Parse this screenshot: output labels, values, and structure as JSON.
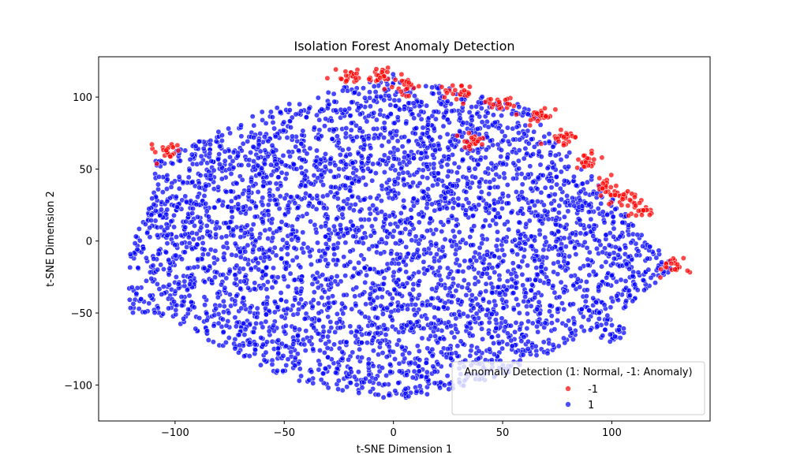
{
  "chart_data": {
    "type": "scatter",
    "title": "Isolation Forest Anomaly Detection",
    "xlabel": "t-SNE Dimension 1",
    "ylabel": "t-SNE Dimension 2",
    "xlim": [
      -135,
      145
    ],
    "ylim": [
      -125,
      128
    ],
    "xticks": [
      -100,
      -50,
      0,
      50,
      100
    ],
    "yticks": [
      -100,
      -50,
      0,
      50,
      100
    ],
    "grid": false,
    "legend": {
      "title": "Anomaly Detection (1: Normal, -1: Anomaly)",
      "placement": "lower-right",
      "entries": [
        {
          "label": "-1",
          "color": "#ff0000"
        },
        {
          "label": "1",
          "color": "#0000ff"
        }
      ]
    },
    "colors": {
      "anomaly": "#ff0000",
      "normal": "#0000ff",
      "edge": "#ffffff"
    },
    "series": [
      {
        "label": "1",
        "description": "normal points filling the main cluster",
        "x_range": [
          -121,
          130
        ],
        "y_range": [
          -113,
          116
        ]
      },
      {
        "label": "-1",
        "description": "anomaly points along the upper and right edges",
        "clusters": [
          {
            "x": -103,
            "y": 62
          },
          {
            "x": -19,
            "y": 114
          },
          {
            "x": -7,
            "y": 115
          },
          {
            "x": 6,
            "y": 108
          },
          {
            "x": 30,
            "y": 103
          },
          {
            "x": 50,
            "y": 95
          },
          {
            "x": 68,
            "y": 86
          },
          {
            "x": 78,
            "y": 72
          },
          {
            "x": 90,
            "y": 55
          },
          {
            "x": 97,
            "y": 38
          },
          {
            "x": 106,
            "y": 31
          },
          {
            "x": 113,
            "y": 22
          },
          {
            "x": 128,
            "y": -18
          },
          {
            "x": 35,
            "y": 70
          }
        ]
      }
    ]
  }
}
